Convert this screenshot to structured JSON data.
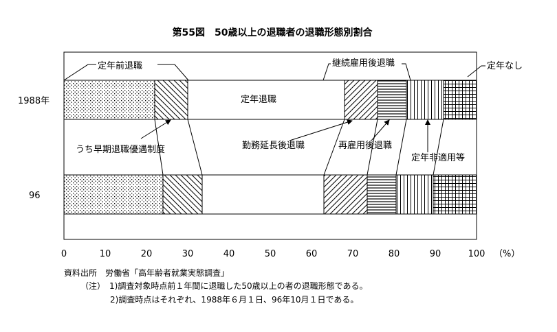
{
  "chart_data": {
    "type": "bar",
    "orientation": "horizontal-stacked-100",
    "title": "第55図　50歳以上の退職者の退職形態別割合",
    "xlim": [
      0,
      100
    ],
    "x_unit_label": "（%）",
    "x_ticks": [
      "0",
      "10",
      "20",
      "30",
      "40",
      "50",
      "60",
      "70",
      "80",
      "90",
      "100"
    ],
    "categories": [
      "1988年",
      "96"
    ],
    "series": [
      {
        "name": "定年前退職",
        "pattern": "dots",
        "values": [
          22,
          24
        ]
      },
      {
        "name": "うち早期退職優遇制度",
        "pattern": "backslash",
        "values": [
          8,
          9.5
        ]
      },
      {
        "name": "定年退職",
        "pattern": "blank",
        "values": [
          38,
          29.5
        ]
      },
      {
        "name": "勤務延長後退職",
        "pattern": "slash",
        "values": [
          8,
          10.5
        ]
      },
      {
        "name": "再雇用後退職",
        "pattern": "horizontal",
        "values": [
          7,
          7
        ]
      },
      {
        "name": "定年非適用等",
        "pattern": "vertical",
        "values": [
          9,
          9
        ]
      },
      {
        "name": "定年なし",
        "pattern": "grid",
        "values": [
          8,
          10.5
        ]
      }
    ],
    "group_labels": {
      "continued_employment": "継続雇用後退職"
    },
    "source": "資料出所　労働省「高年齢者就業実態調査」",
    "notes": [
      "（注）　1)調査対象時点前１年間に退職した50歳以上の者の退職形態である。",
      "2)調査時点はそれぞれ、1988年６月１日、96年10月１日である。"
    ]
  }
}
